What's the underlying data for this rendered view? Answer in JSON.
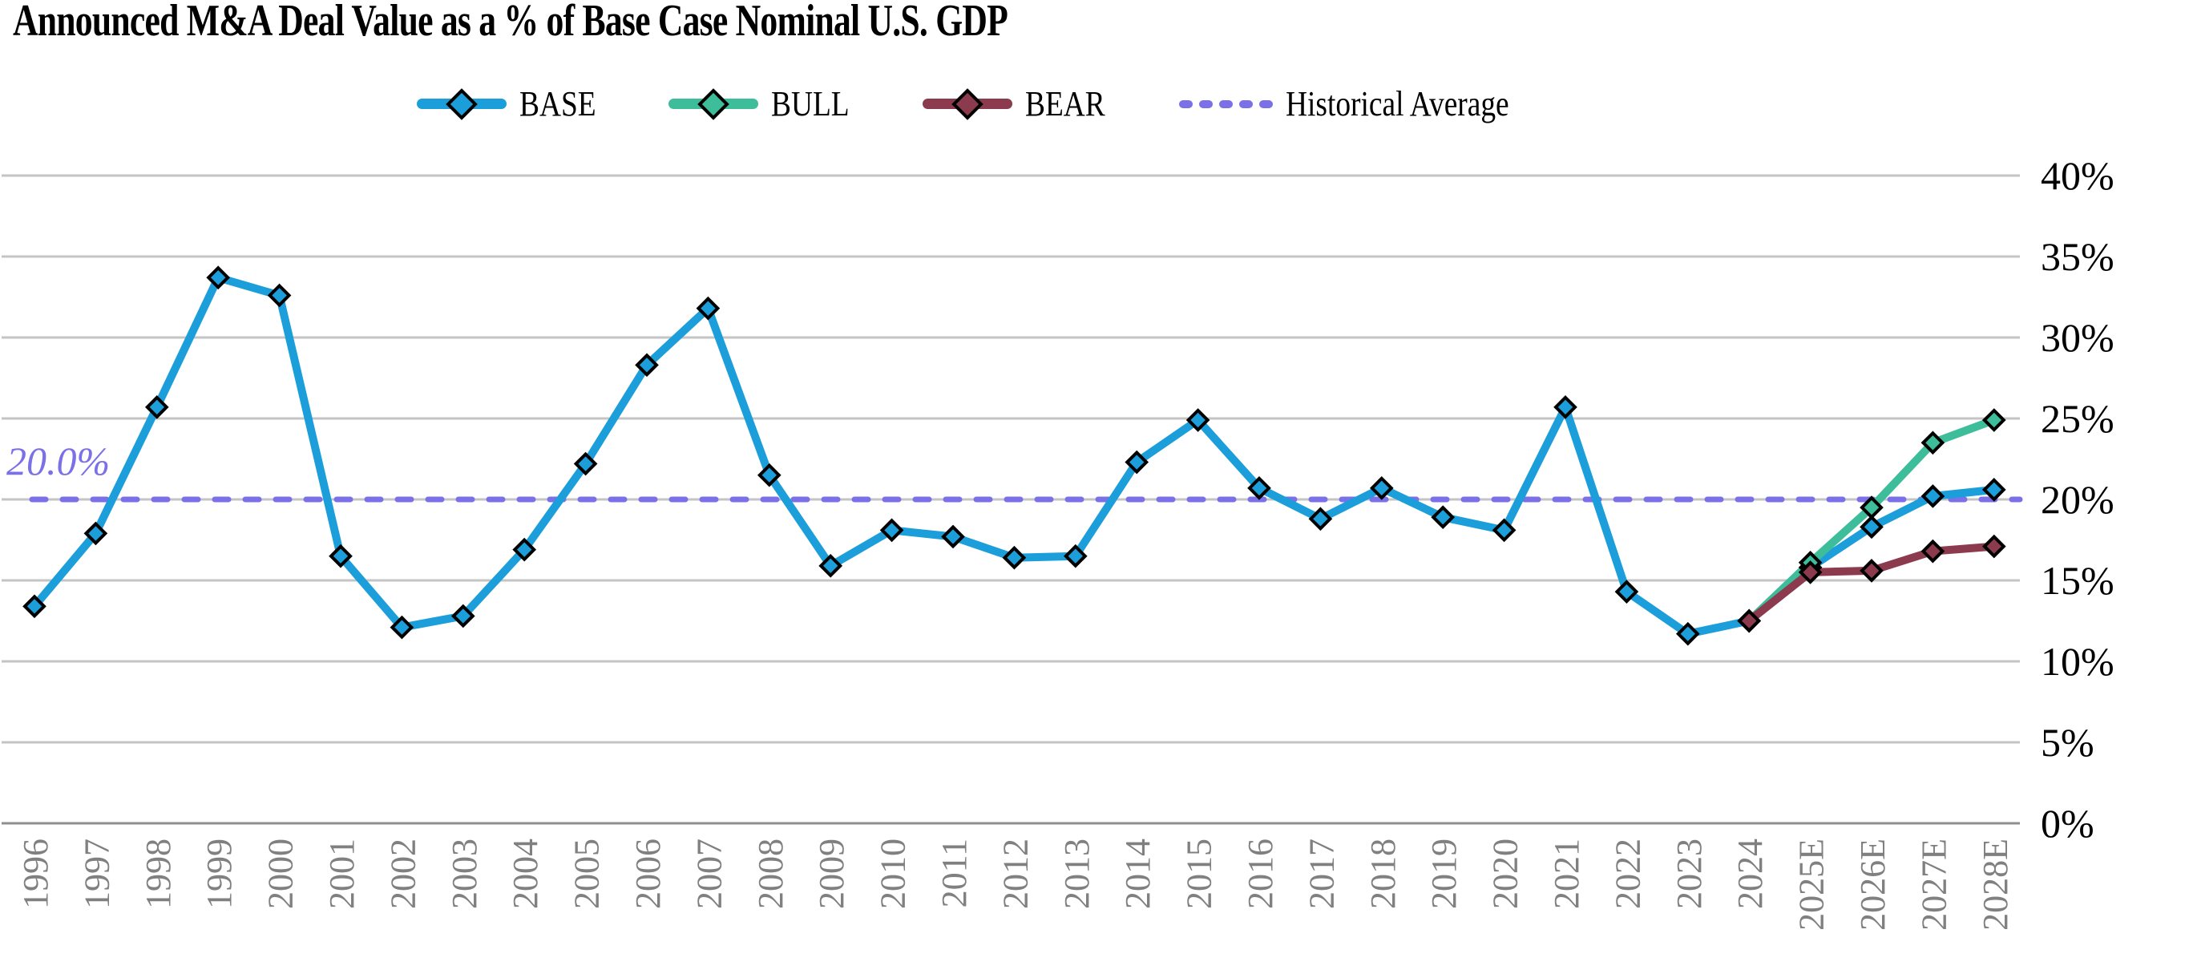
{
  "chart_data": {
    "type": "line",
    "title": "Announced M&A Deal Value as a % of Base Case Nominal U.S. GDP",
    "categories": [
      "1996",
      "1997",
      "1998",
      "1999",
      "2000",
      "2001",
      "2002",
      "2003",
      "2004",
      "2005",
      "2006",
      "2007",
      "2008",
      "2009",
      "2010",
      "2011",
      "2012",
      "2013",
      "2014",
      "2015",
      "2016",
      "2017",
      "2018",
      "2019",
      "2020",
      "2021",
      "2022",
      "2023",
      "2024",
      "2025E",
      "2026E",
      "2027E",
      "2028E"
    ],
    "series": [
      {
        "name": "BASE",
        "color": "#1B9ED9",
        "values": [
          13.4,
          17.9,
          25.7,
          33.7,
          32.6,
          16.5,
          12.1,
          12.8,
          16.9,
          22.2,
          28.3,
          31.8,
          21.5,
          15.9,
          18.1,
          17.7,
          16.4,
          16.5,
          22.3,
          24.9,
          20.7,
          18.8,
          20.7,
          18.9,
          18.1,
          25.7,
          14.3,
          11.7,
          12.5,
          15.8,
          18.3,
          20.2,
          20.6
        ]
      },
      {
        "name": "BULL",
        "color": "#3EBD9B",
        "values": [
          null,
          null,
          null,
          null,
          null,
          null,
          null,
          null,
          null,
          null,
          null,
          null,
          null,
          null,
          null,
          null,
          null,
          null,
          null,
          null,
          null,
          null,
          null,
          null,
          null,
          null,
          null,
          null,
          12.5,
          16.1,
          19.5,
          23.5,
          24.9
        ]
      },
      {
        "name": "BEAR",
        "color": "#8C3A4D",
        "values": [
          null,
          null,
          null,
          null,
          null,
          null,
          null,
          null,
          null,
          null,
          null,
          null,
          null,
          null,
          null,
          null,
          null,
          null,
          null,
          null,
          null,
          null,
          null,
          null,
          null,
          null,
          null,
          null,
          12.5,
          15.5,
          15.6,
          16.8,
          17.1
        ]
      }
    ],
    "historical_average": {
      "label": "Historical Average",
      "value": 20.0,
      "annotation": "20.0%",
      "color": "#7B70E8"
    },
    "y_axis": {
      "min": 0,
      "max": 40,
      "step": 5,
      "tick_labels": [
        "40%",
        "35%",
        "30%",
        "25%",
        "20%",
        "15%",
        "10%",
        "5%",
        "0%"
      ]
    },
    "x_axis": {
      "label_color": "#808080",
      "label_rotation": -90
    },
    "grid": {
      "on": true,
      "color": "#C4C4C4",
      "axis_color": "#8F8F8F"
    },
    "legend_position": "top",
    "marker": "diamond"
  }
}
